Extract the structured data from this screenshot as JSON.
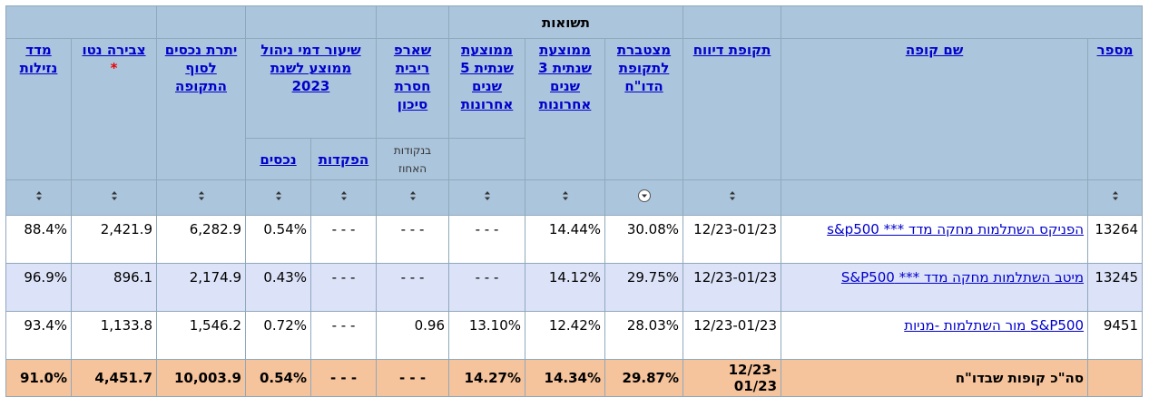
{
  "header": {
    "group": "תשואות",
    "columns": [
      "מספר",
      "שם קופה",
      "תקופת דיווח",
      "מצטברת לתקופת הדו\"ח",
      "ממוצעת שנתית 3 שנים אחרונות",
      "ממוצעת שנתית 5 שנים אחרונות",
      "שארפ ריבית חסרת סיכון",
      "שיעור דמי ניהול ממוצע לשנת 2023",
      "יתרת נכסים לסוף התקופה",
      "צבירה נטו",
      "מדד נזילות"
    ],
    "note_mark": "*",
    "sharpe_unit": "בנקודות האחוז",
    "fee_sub": [
      "הפקדות",
      "נכסים"
    ]
  },
  "rows": [
    [
      "13264",
      "הפניקס השתלמות מחקה מדד *** s&p500",
      "12/23-01/23",
      "30.08%",
      "14.44%",
      "- - -",
      "- - -",
      "- - -",
      "0.54%",
      "6,282.9",
      "2,421.9",
      "88.4%"
    ],
    [
      "13245",
      "מיטב השתלמות מחקה מדד *** S&P500",
      "12/23-01/23",
      "29.75%",
      "14.12%",
      "- - -",
      "- - -",
      "- - -",
      "0.43%",
      "2,174.9",
      "896.1",
      "96.9%"
    ],
    [
      "9451",
      "S&P500 מור השתלמות -מניות",
      "12/23-01/23",
      "28.03%",
      "12.42%",
      "13.10%",
      "0.96",
      "- - -",
      "0.72%",
      "1,546.2",
      "1,133.8",
      "93.4%"
    ]
  ],
  "total": {
    "label": "סה\"כ קופות שבדו\"ח",
    "cells": [
      "12/23-01/23",
      "29.87%",
      "14.34%",
      "14.27%",
      "- - -",
      "- - -",
      "0.54%",
      "10,003.9",
      "4,451.7",
      "91.0%"
    ]
  }
}
